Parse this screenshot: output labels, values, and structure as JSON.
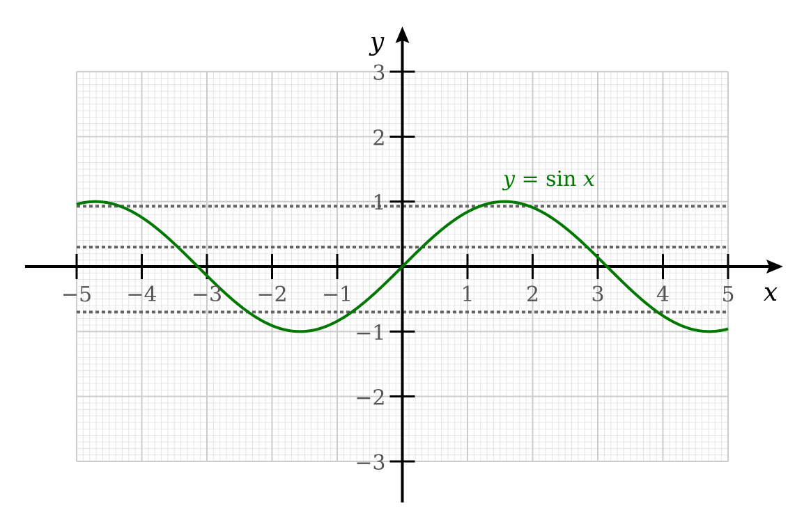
{
  "chart_data": {
    "type": "line",
    "xlabel": "x",
    "ylabel": "y",
    "xlim": [
      -5,
      5
    ],
    "ylim": [
      -3,
      3
    ],
    "x_ticks": [
      -5,
      -4,
      -3,
      -2,
      -1,
      1,
      2,
      3,
      4,
      5
    ],
    "y_ticks": [
      -3,
      -2,
      -1,
      1,
      2,
      3
    ],
    "x_tick_labels": [
      "−5",
      "−4",
      "−3",
      "−2",
      "−1",
      "1",
      "2",
      "3",
      "4",
      "5"
    ],
    "y_tick_labels": [
      "−3",
      "−2",
      "−1",
      "1",
      "2",
      "3"
    ],
    "grid": true,
    "grid_major_step": 1,
    "grid_minor_step": 0.1,
    "series": [
      {
        "name": "y = sin x",
        "function": "sin",
        "x_range": [
          -5,
          5
        ],
        "color": "#007700"
      }
    ],
    "reference_lines": [
      {
        "orientation": "horizontal",
        "y": 0.93,
        "style": "dotted",
        "color": "#666666"
      },
      {
        "orientation": "horizontal",
        "y": 0.3,
        "style": "dotted",
        "color": "#666666"
      },
      {
        "orientation": "horizontal",
        "y": -0.7,
        "style": "dotted",
        "color": "#666666"
      }
    ],
    "colors": {
      "grid_major": "#cccccc",
      "grid_minor": "#e4e4e4",
      "axes": "#000000",
      "tick_labels": "#555555"
    }
  }
}
